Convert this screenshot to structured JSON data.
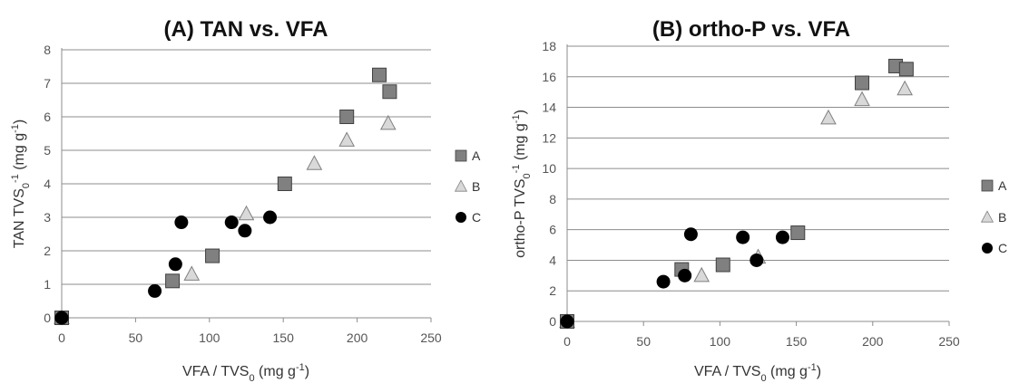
{
  "colors": {
    "A": "#808080",
    "B": "#d9d9d9",
    "C": "#000000",
    "grid": "#8c8c8c"
  },
  "chart_data": [
    {
      "type": "scatter",
      "title": "(A) TAN vs. VFA",
      "xlabel": {
        "main": "VFA / TVS",
        "sub": "0",
        "rest": " (mg g",
        "sup": "-1",
        "end": ")"
      },
      "ylabel": {
        "main": "TAN TVS",
        "sub": "0",
        "sup": "-1",
        "rest": " (mg g",
        "sup2": "-1",
        "end": ")"
      },
      "xlim": [
        0,
        250
      ],
      "ylim": [
        0,
        8
      ],
      "xticks": [
        0,
        50,
        100,
        150,
        200,
        250
      ],
      "yticks": [
        0,
        1,
        2,
        3,
        4,
        5,
        6,
        7,
        8
      ],
      "grid": true,
      "legend_position": "right",
      "series": [
        {
          "name": "A",
          "marker": "square",
          "x": [
            0,
            75,
            102,
            151,
            193,
            215,
            222
          ],
          "y": [
            0,
            1.1,
            1.85,
            4.0,
            6.0,
            7.25,
            6.75
          ]
        },
        {
          "name": "B",
          "marker": "triangle",
          "x": [
            0,
            88,
            125,
            171,
            193,
            221
          ],
          "y": [
            0,
            1.3,
            3.1,
            4.6,
            5.3,
            5.8
          ]
        },
        {
          "name": "C",
          "marker": "circle",
          "x": [
            0,
            63,
            77,
            81,
            115,
            124,
            141
          ],
          "y": [
            0,
            0.8,
            1.6,
            2.85,
            2.85,
            2.6,
            3.0
          ]
        }
      ]
    },
    {
      "type": "scatter",
      "title": "(B) ortho-P vs. VFA",
      "xlabel": {
        "main": "VFA / TVS",
        "sub": "0",
        "rest": " (mg g",
        "sup": "-1",
        "end": ")"
      },
      "ylabel": {
        "main": "ortho-P TVS",
        "sub": "0",
        "sup": "-1",
        "rest": " (mg g",
        "sup2": "-1",
        "end": ")"
      },
      "xlim": [
        0,
        250
      ],
      "ylim": [
        0,
        18
      ],
      "xticks": [
        0,
        50,
        100,
        150,
        200,
        250
      ],
      "yticks": [
        0,
        2,
        4,
        6,
        8,
        10,
        12,
        14,
        16,
        18
      ],
      "grid": true,
      "legend_position": "right",
      "series": [
        {
          "name": "A",
          "marker": "square",
          "x": [
            0,
            75,
            102,
            151,
            193,
            215,
            222
          ],
          "y": [
            0,
            3.4,
            3.7,
            5.8,
            15.6,
            16.7,
            16.5
          ]
        },
        {
          "name": "B",
          "marker": "triangle",
          "x": [
            0,
            88,
            125,
            171,
            193,
            221
          ],
          "y": [
            0,
            3.0,
            4.2,
            13.3,
            14.5,
            15.2
          ]
        },
        {
          "name": "C",
          "marker": "circle",
          "x": [
            0,
            63,
            77,
            81,
            115,
            124,
            141
          ],
          "y": [
            0,
            2.6,
            3.0,
            5.7,
            5.5,
            4.0,
            5.5
          ]
        }
      ]
    }
  ]
}
